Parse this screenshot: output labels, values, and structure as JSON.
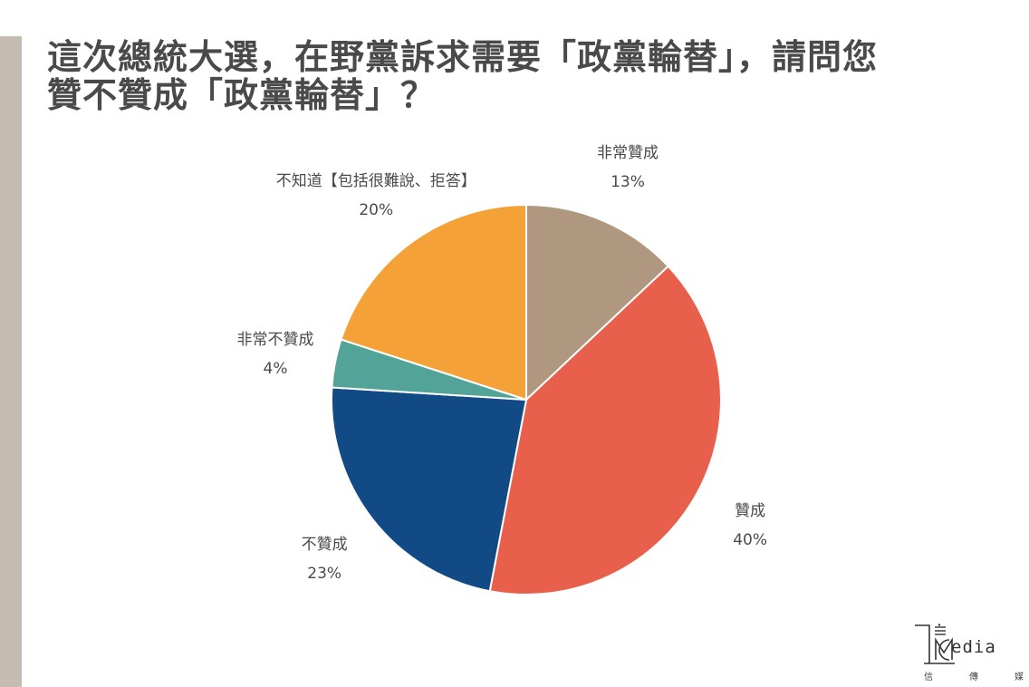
{
  "title_lines": [
    "這次總統大選，在野黨訴求需要「政黨輪替」，請問您",
    "贊不贊成「政黨輪替」？"
  ],
  "brand": {
    "wordmark": "edia",
    "subtitle": [
      "信",
      "傳",
      "媒"
    ]
  },
  "chart_data": {
    "type": "pie",
    "title": "這次總統大選，在野黨訴求需要「政黨輪替」，請問您贊不贊成「政黨輪替」？",
    "slices": [
      {
        "label": "非常贊成",
        "value": 13,
        "value_label": "13%",
        "color": "#b09880"
      },
      {
        "label": "贊成",
        "value": 40,
        "value_label": "40%",
        "color": "#e8604c"
      },
      {
        "label": "不贊成",
        "value": 23,
        "value_label": "23%",
        "color": "#124a85"
      },
      {
        "label": "非常不贊成",
        "value": 4,
        "value_label": "4%",
        "color": "#52a499"
      },
      {
        "label": "不知道【包括很難說、拒答】",
        "value": 20,
        "value_label": "20%",
        "color": "#f4a238"
      }
    ],
    "start_angle": "12 o'clock",
    "direction": "clockwise",
    "legend": "none"
  }
}
